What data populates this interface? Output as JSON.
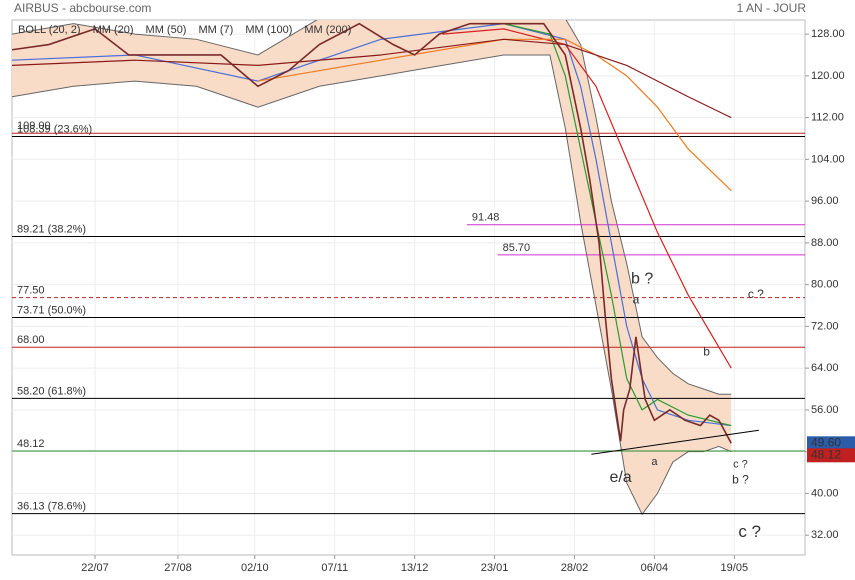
{
  "chart_data": {
    "type": "stock",
    "title": "AIRBUS - abcbourse.com",
    "subtitle": "1 AN - JOUR",
    "xlim": [
      0,
      258
    ],
    "xticks": [
      {
        "value": 27,
        "label": "22/07"
      },
      {
        "value": 54,
        "label": "27/08"
      },
      {
        "value": 79,
        "label": "02/10"
      },
      {
        "value": 105,
        "label": "07/11"
      },
      {
        "value": 131,
        "label": "13/12"
      },
      {
        "value": 157,
        "label": "23/01"
      },
      {
        "value": 183,
        "label": "28/02"
      },
      {
        "value": 209,
        "label": "06/04"
      },
      {
        "value": 235,
        "label": "19/05"
      }
    ],
    "ylim": [
      28.2,
      130.7
    ],
    "yticks": [
      {
        "value": 32,
        "label": "32.00"
      },
      {
        "value": 40,
        "label": "40.00"
      },
      {
        "value": 48,
        "label": "48.00"
      },
      {
        "value": 56,
        "label": "56.00"
      },
      {
        "value": 64,
        "label": "64.00"
      },
      {
        "value": 72,
        "label": "72.00"
      },
      {
        "value": 80,
        "label": "80.00"
      },
      {
        "value": 88,
        "label": "88.00"
      },
      {
        "value": 96,
        "label": "96.00"
      },
      {
        "value": 104,
        "label": "104.00"
      },
      {
        "value": 112,
        "label": "112.00"
      },
      {
        "value": 120,
        "label": "120.00"
      },
      {
        "value": 128,
        "label": "128.00"
      }
    ],
    "grid": true,
    "price": {
      "color": "#7a2a2a",
      "x": [
        0,
        12,
        27,
        38,
        54,
        68,
        80,
        90,
        100,
        113,
        124,
        131,
        139,
        149,
        173,
        180,
        185,
        188,
        191,
        193,
        195,
        198,
        199,
        201,
        203,
        206,
        209,
        214,
        219,
        224,
        227,
        230,
        234
      ],
      "values": [
        125,
        126,
        129,
        124,
        124,
        124,
        118,
        121,
        126,
        130,
        126,
        124,
        128,
        130,
        130,
        124,
        110,
        100,
        88,
        74,
        62,
        50,
        56,
        60,
        70,
        58,
        54,
        56,
        54,
        53,
        55,
        54,
        49.6
      ]
    },
    "band": {
      "name": "BOLL (20, 2)",
      "color": "#f8dcc8",
      "x": [
        0,
        20,
        40,
        60,
        80,
        100,
        120,
        140,
        160,
        175,
        180,
        185,
        190,
        195,
        200,
        205,
        210,
        215,
        220,
        225,
        230,
        234
      ],
      "upper": [
        128,
        130,
        128,
        127,
        124,
        131,
        131,
        131,
        132,
        132,
        131,
        126,
        112,
        96,
        84,
        70,
        66,
        63,
        61,
        60,
        59,
        59
      ],
      "lower": [
        116,
        118,
        119,
        118,
        114,
        118,
        120,
        122,
        124,
        124,
        110,
        92,
        76,
        60,
        42,
        36,
        40,
        46,
        48,
        48,
        49,
        48
      ]
    },
    "series": [
      {
        "name": "MM (20)",
        "color": "#4a6fd8",
        "x": [
          0,
          40,
          80,
          120,
          160,
          180,
          185,
          190,
          195,
          200,
          205,
          210,
          220,
          234
        ],
        "values": [
          123,
          124,
          119,
          127,
          130,
          127,
          118,
          104,
          88,
          72,
          62,
          56,
          54,
          53
        ]
      },
      {
        "name": "MM (50)",
        "color": "#d82020",
        "x": [
          140,
          160,
          180,
          190,
          200,
          210,
          220,
          234
        ],
        "values": [
          128,
          129,
          126,
          118,
          104,
          90,
          78,
          64
        ]
      },
      {
        "name": "MM (7)",
        "color": "#2a9a2a",
        "x": [
          160,
          175,
          180,
          185,
          190,
          195,
          200,
          205,
          210,
          220,
          234
        ],
        "values": [
          130,
          128,
          120,
          106,
          92,
          78,
          62,
          56,
          58,
          55,
          53
        ]
      },
      {
        "name": "MM (100)",
        "color": "#f07a20",
        "x": [
          80,
          120,
          160,
          180,
          190,
          200,
          210,
          220,
          234
        ],
        "values": [
          119,
          123,
          127,
          127,
          124,
          120,
          114,
          106,
          98
        ]
      },
      {
        "name": "MM (200)",
        "color": "#8a1a1a",
        "x": [
          0,
          40,
          80,
          120,
          160,
          180,
          200,
          220,
          234
        ],
        "values": [
          122,
          123,
          122,
          124,
          127,
          126,
          122,
          116,
          112
        ]
      }
    ],
    "levels": [
      {
        "value": 109,
        "label": "109.00",
        "color": "#c02020"
      },
      {
        "value": 108.39,
        "label": "108.39 (23.6%)",
        "color": "#000000"
      },
      {
        "value": 91.48,
        "label": "91.48",
        "color": "#d030d0",
        "x_start": 148
      },
      {
        "value": 89.21,
        "label": "89.21 (38.2%)",
        "color": "#000000"
      },
      {
        "value": 85.7,
        "label": "85.70",
        "color": "#d030d0",
        "x_start": 158
      },
      {
        "value": 77.5,
        "label": "77.50",
        "color": "#c02020",
        "dashed": true
      },
      {
        "value": 73.71,
        "label": "73.71 (50.0%)",
        "color": "#000000"
      },
      {
        "value": 68,
        "label": "68.00",
        "color": "#c02020"
      },
      {
        "value": 58.2,
        "label": "58.20 (61.8%)",
        "color": "#000000"
      },
      {
        "value": 48.12,
        "label": "48.12",
        "color": "#2a8a2a"
      },
      {
        "value": 36.13,
        "label": "36.13 (78.6%)",
        "color": "#000000"
      }
    ],
    "trendline": {
      "x": [
        188.5,
        243
      ],
      "values": [
        47.5,
        52.1
      ]
    },
    "annotations": [
      {
        "text": "b ?",
        "x": 205,
        "y": 81,
        "color": "#a01010",
        "size": 16
      },
      {
        "text": "a",
        "x": 203,
        "y": 77,
        "color": "#2a3a9a",
        "size": 12
      },
      {
        "text": "c ?",
        "x": 242,
        "y": 78,
        "color": "#2a3a9a",
        "size": 12
      },
      {
        "text": "b",
        "x": 226,
        "y": 67,
        "color": "#c02020",
        "size": 12
      },
      {
        "text": "a",
        "x": 209,
        "y": 46,
        "color": "#c02020",
        "size": 11
      },
      {
        "text": "e/a",
        "x": 198,
        "y": 43,
        "color": "#a01010",
        "size": 16
      },
      {
        "text": "c ?",
        "x": 237,
        "y": 45.5,
        "color": "#c02020",
        "size": 11
      },
      {
        "text": "b ?",
        "x": 237,
        "y": 42.5,
        "color": "#2a3a9a",
        "size": 12
      },
      {
        "text": "c ?",
        "x": 240,
        "y": 32.5,
        "color": "#a01010",
        "size": 17
      }
    ],
    "last_values": [
      {
        "value": 49.6,
        "label": "49.60",
        "color": "#2a5caa"
      },
      {
        "value": 48.12,
        "label": "48.12",
        "color": "#c02020"
      }
    ]
  }
}
